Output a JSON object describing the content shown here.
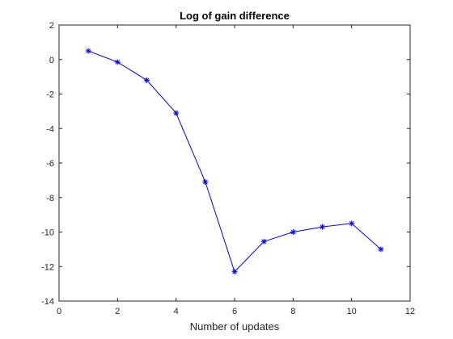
{
  "chart_data": {
    "type": "line",
    "title": "Log of gain difference",
    "xlabel": "Number of updates",
    "ylabel": "",
    "xlim": [
      0,
      12
    ],
    "ylim": [
      -14,
      2
    ],
    "xticks": [
      0,
      2,
      4,
      6,
      8,
      10,
      12
    ],
    "yticks": [
      2,
      0,
      -2,
      -4,
      -6,
      -8,
      -10,
      -12,
      -14
    ],
    "grid": false,
    "series": [
      {
        "color": "#0000ff",
        "marker": "asterisk",
        "x": [
          1,
          2,
          3,
          4,
          5,
          6,
          7,
          8,
          9,
          10,
          11
        ],
        "y": [
          0.5,
          -0.15,
          -1.2,
          -3.1,
          -7.1,
          -12.3,
          -10.55,
          -10.0,
          -9.7,
          -9.5,
          -11.0
        ]
      }
    ]
  }
}
